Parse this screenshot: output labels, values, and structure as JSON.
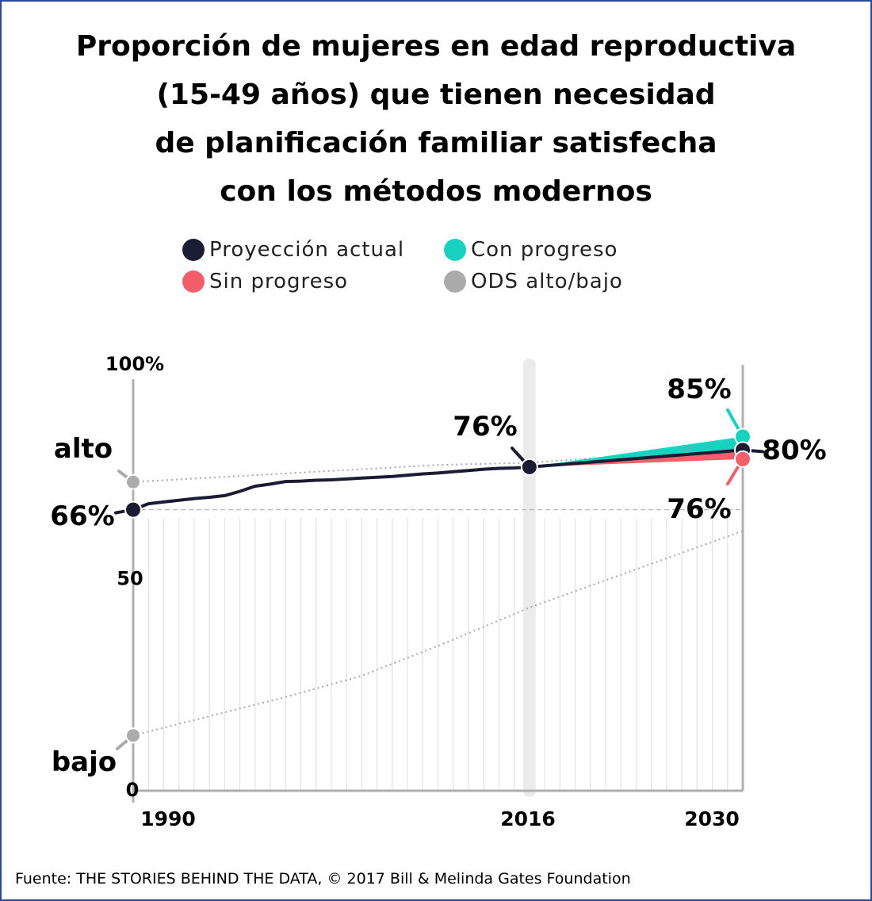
{
  "title_lines": [
    "Proporción de mujeres en edad reproductiva",
    "(15-49 años) que tienen necesidad",
    "de planificación familiar satisfecha",
    "con los métodos modernos"
  ],
  "legend": [
    {
      "label": "Proyección actual",
      "color": "#1b1c33"
    },
    {
      "label": "Con progreso",
      "color": "#18d2c0"
    },
    {
      "label": "Sin progreso",
      "color": "#f25f6b"
    },
    {
      "label": "ODS alto/bajo",
      "color": "#ababab"
    }
  ],
  "source": "Fuente: THE STORIES BEHIND THE DATA, © 2017 Bill & Melinda Gates Foundation",
  "chart_data": {
    "type": "line",
    "title": "Proporción de mujeres en edad reproductiva (15-49 años) que tienen necesidad de planificación familiar satisfecha con los métodos modernos",
    "y_tick_labels": [
      "100%",
      "50",
      "0"
    ],
    "y_ticks": [
      100,
      50,
      0
    ],
    "x_tick_labels": [
      "1990",
      "2016",
      "2030"
    ],
    "x_ticks": [
      1990,
      2016,
      2030
    ],
    "xlim": [
      1990,
      2030
    ],
    "ylim": [
      0,
      100
    ],
    "legend_position": "top",
    "series": [
      {
        "name": "Proyección actual",
        "color": "#1b1c33",
        "x": [
          1990,
          1991,
          1992,
          1993,
          1994,
          1995,
          1996,
          1997,
          1998,
          1999,
          2000,
          2001,
          2002,
          2003,
          2004,
          2005,
          2006,
          2007,
          2008,
          2009,
          2010,
          2011,
          2012,
          2013,
          2014,
          2015,
          2016,
          2030
        ],
        "y": [
          66,
          67.4,
          67.8,
          68.2,
          68.6,
          68.9,
          69.3,
          70.3,
          71.5,
          72,
          72.6,
          72.7,
          72.9,
          73,
          73.2,
          73.4,
          73.6,
          73.8,
          74.1,
          74.4,
          74.6,
          74.9,
          75.2,
          75.5,
          75.7,
          75.8,
          76,
          80
        ]
      },
      {
        "name": "Con progreso",
        "color": "#18d2c0",
        "x": [
          2016,
          2030
        ],
        "y": [
          76,
          85
        ]
      },
      {
        "name": "Sin progreso",
        "color": "#f25f6b",
        "x": [
          2016,
          2030
        ],
        "y": [
          76,
          76
        ]
      },
      {
        "name": "ODS alto",
        "color": "#ababab",
        "x": [
          1990,
          2000,
          2010,
          2016,
          2030
        ],
        "y": [
          72.5,
          74.5,
          76.5,
          77,
          80.5
        ]
      },
      {
        "name": "ODS bajo",
        "color": "#ababab",
        "x": [
          1990,
          2000,
          2005,
          2010,
          2016,
          2030
        ],
        "y": [
          13,
          22,
          27,
          34,
          43,
          61
        ]
      }
    ],
    "annotations": [
      {
        "text": "66%",
        "x": 1990,
        "y": 66
      },
      {
        "text": "76%",
        "x": 2016,
        "y": 76
      },
      {
        "text": "85%",
        "x": 2030,
        "y": 85
      },
      {
        "text": "80%",
        "x": 2030,
        "y": 80
      },
      {
        "text": "76%",
        "x": 2030,
        "y": 76
      },
      {
        "text": "alto",
        "x": 1990,
        "y": 72.5
      },
      {
        "text": "bajo",
        "x": 1990,
        "y": 13
      }
    ]
  }
}
